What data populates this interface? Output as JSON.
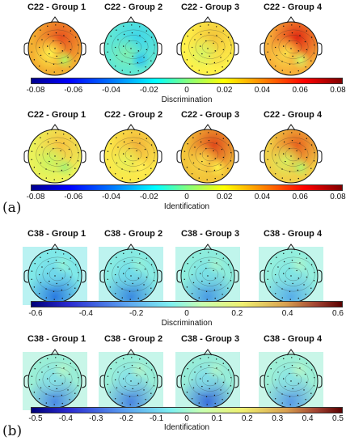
{
  "section_a": {
    "label": "(a)",
    "rows": [
      {
        "titles": [
          "C22 - Group 1",
          "C22 - Group 2",
          "C22 - Group 3",
          "C22 - Group 4"
        ],
        "colorbar": {
          "ticks": [
            "-0.08",
            "-0.06",
            "-0.04",
            "-0.02",
            "0",
            "0.02",
            "0.04",
            "0.06",
            "0.08"
          ],
          "label": "Discrimination"
        },
        "maps": [
          {
            "base": "#f3b032",
            "blobs": [
              {
                "c": "#e8521e",
                "r": 0.9
              },
              {
                "c": "#fff14a",
                "r": 0.45
              },
              {
                "c": "#b8f25c",
                "r": 0.25
              }
            ]
          },
          {
            "base": "#62e8d3",
            "blobs": [
              {
                "c": "#3fd6e8",
                "r": 0.9
              },
              {
                "c": "#7ff0b0",
                "r": 0.45
              },
              {
                "c": "#2ec3f0",
                "r": 0.2
              }
            ]
          },
          {
            "base": "#fff14a",
            "blobs": [
              {
                "c": "#f2c43a",
                "r": 0.9
              },
              {
                "c": "#d8f562",
                "r": 0.5
              },
              {
                "c": "#f7e24a",
                "r": 0.25
              }
            ]
          },
          {
            "base": "#f7b13a",
            "blobs": [
              {
                "c": "#e02a12",
                "r": 0.9
              },
              {
                "c": "#fbe04a",
                "r": 0.45
              },
              {
                "c": "#d8f562",
                "r": 0.2
              }
            ]
          }
        ]
      },
      {
        "titles": [
          "C22 - Group 1",
          "C22 - Group 2",
          "C22 - Group 3",
          "C22 - Group 4"
        ],
        "colorbar": {
          "ticks": [
            "-0.08",
            "-0.06",
            "-0.04",
            "-0.02",
            "0",
            "0.02",
            "0.04",
            "0.06",
            "0.08"
          ],
          "label": "Identification"
        },
        "maps": [
          {
            "base": "#eaf25a",
            "blobs": [
              {
                "c": "#f7c340",
                "r": 0.9
              },
              {
                "c": "#c8f562",
                "r": 0.45
              },
              {
                "c": "#a8f070",
                "r": 0.2
              }
            ]
          },
          {
            "base": "#fbe84a",
            "blobs": [
              {
                "c": "#f2b43a",
                "r": 0.9
              },
              {
                "c": "#e8f258",
                "r": 0.45
              },
              {
                "c": "#ffef55",
                "r": 0.2
              }
            ]
          },
          {
            "base": "#f2c43a",
            "blobs": [
              {
                "c": "#e04a1a",
                "r": 0.9
              },
              {
                "c": "#f8d848",
                "r": 0.5
              },
              {
                "c": "#fff14a",
                "r": 0.25
              }
            ]
          },
          {
            "base": "#f0d048",
            "blobs": [
              {
                "c": "#e8641e",
                "r": 0.9
              },
              {
                "c": "#d8f060",
                "r": 0.5
              },
              {
                "c": "#b8f268",
                "r": 0.2
              }
            ]
          }
        ]
      }
    ]
  },
  "section_b": {
    "label": "(b)",
    "rows": [
      {
        "titles": [
          "C38 - Group 1",
          "C38 - Group 2",
          "C38 - Group 3",
          "C38 - Group 4"
        ],
        "colorbar": {
          "ticks": [
            "-0.6",
            "-0.4",
            "-0.2",
            "0",
            "0.2",
            "0.4",
            "0.6"
          ],
          "label": "Discrimination"
        },
        "maps": [
          {
            "base": "#7fe8e8",
            "blobs": [
              {
                "c": "#2a7ae0",
                "r": 0.9
              },
              {
                "c": "#6fd8ea",
                "r": 0.5
              },
              {
                "c": "#8ff0d8",
                "r": 0.2
              }
            ]
          },
          {
            "base": "#86eae2",
            "blobs": [
              {
                "c": "#3a8ae0",
                "r": 0.9
              },
              {
                "c": "#70dcea",
                "r": 0.5
              },
              {
                "c": "#92f0d8",
                "r": 0.2
              }
            ]
          },
          {
            "base": "#8cecdc",
            "blobs": [
              {
                "c": "#4a9ce4",
                "r": 0.9
              },
              {
                "c": "#78e0e6",
                "r": 0.5
              },
              {
                "c": "#a0f2d0",
                "r": 0.2
              }
            ]
          },
          {
            "base": "#92eedd",
            "blobs": [
              {
                "c": "#58aee8",
                "r": 0.9
              },
              {
                "c": "#80e6e4",
                "r": 0.5
              },
              {
                "c": "#a8f4cc",
                "r": 0.2
              }
            ]
          }
        ]
      },
      {
        "titles": [
          "C38 - Group 1",
          "C38 - Group 2",
          "C38 - Group 3",
          "C38 - Group 4"
        ],
        "colorbar": {
          "ticks": [
            "-0.5",
            "-0.4",
            "-0.3",
            "-0.2",
            "-0.1",
            "0",
            "0.1",
            "0.2",
            "0.3",
            "0.4",
            "0.5"
          ],
          "label": "Identification"
        },
        "maps": [
          {
            "base": "#9aeed6",
            "blobs": [
              {
                "c": "#4a8ae4",
                "r": 0.9
              },
              {
                "c": "#86e2e6",
                "r": 0.5
              },
              {
                "c": "#b0f4c8",
                "r": 0.2
              }
            ]
          },
          {
            "base": "#98eed8",
            "blobs": [
              {
                "c": "#4a86e2",
                "r": 0.9
              },
              {
                "c": "#84e0e8",
                "r": 0.5
              },
              {
                "c": "#aef2ca",
                "r": 0.2
              }
            ]
          },
          {
            "base": "#96ecd8",
            "blobs": [
              {
                "c": "#3a70dc",
                "r": 0.9
              },
              {
                "c": "#80dce8",
                "r": 0.5
              },
              {
                "c": "#aaf2cc",
                "r": 0.2
              }
            ]
          },
          {
            "base": "#9cefd6",
            "blobs": [
              {
                "c": "#5a9ce6",
                "r": 0.9
              },
              {
                "c": "#88e4e4",
                "r": 0.5
              },
              {
                "c": "#b2f4c8",
                "r": 0.2
              }
            ]
          }
        ]
      }
    ]
  }
}
